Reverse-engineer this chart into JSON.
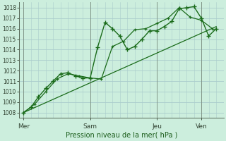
{
  "background_color": "#cceedd",
  "grid_color": "#aacccc",
  "line_color": "#1a6b1a",
  "ylabel_values": [
    1008,
    1009,
    1010,
    1011,
    1012,
    1013,
    1014,
    1015,
    1016,
    1017,
    1018
  ],
  "ylim": [
    1007.5,
    1018.5
  ],
  "xlabel": "Pression niveau de la mer( hPa )",
  "day_labels": [
    "Mer",
    "Sam",
    "Jeu",
    "Ven"
  ],
  "day_positions": [
    0.0,
    3.0,
    6.0,
    8.0
  ],
  "xmin": -0.2,
  "xmax": 9.0,
  "line1_x": [
    0,
    0.33,
    0.67,
    1.0,
    1.33,
    1.67,
    2.0,
    2.33,
    2.67,
    3.0,
    3.33,
    3.67,
    4.0,
    4.33,
    4.67,
    5.0,
    5.33,
    5.67,
    6.0,
    6.33,
    6.67,
    7.0,
    7.33,
    7.67,
    8.0,
    8.33,
    8.67
  ],
  "line1_y": [
    1008.0,
    1008.5,
    1009.5,
    1010.3,
    1011.0,
    1011.7,
    1011.8,
    1011.5,
    1011.3,
    1011.3,
    1014.2,
    1016.6,
    1016.0,
    1015.3,
    1014.0,
    1014.3,
    1015.0,
    1015.8,
    1015.8,
    1016.2,
    1016.7,
    1017.9,
    1018.0,
    1018.1,
    1017.0,
    1015.3,
    1016.0
  ],
  "line2_x": [
    0,
    0.5,
    1.0,
    1.5,
    2.0,
    2.5,
    3.0,
    3.5,
    4.0,
    4.5,
    5.0,
    5.5,
    6.0,
    6.5,
    7.0,
    7.5,
    8.0,
    8.5
  ],
  "line2_y": [
    1008.0,
    1008.8,
    1010.0,
    1011.2,
    1011.7,
    1011.5,
    1011.3,
    1011.2,
    1014.3,
    1014.8,
    1015.9,
    1016.0,
    1016.5,
    1017.0,
    1018.0,
    1017.1,
    1016.8,
    1016.0
  ],
  "trend_x": [
    0,
    8.67
  ],
  "trend_y": [
    1008.0,
    1016.2
  ]
}
